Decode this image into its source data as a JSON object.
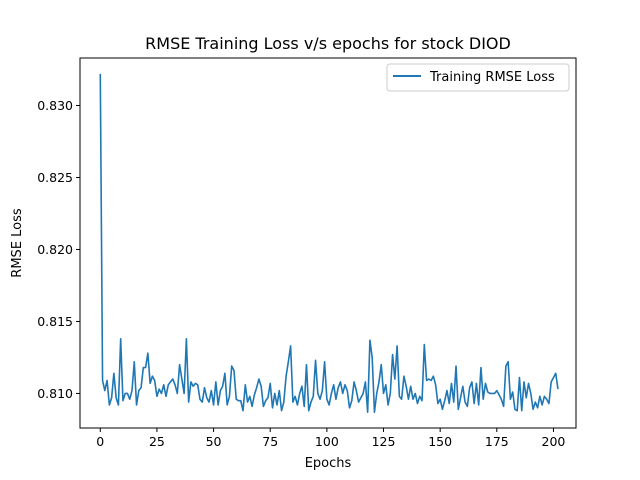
{
  "chart_data": {
    "type": "line",
    "title": "RMSE Training Loss v/s epochs for stock DIOD",
    "xlabel": "Epochs",
    "ylabel": "RMSE Loss",
    "xlim": [
      -8.95,
      209.95
    ],
    "ylim": [
      0.8076,
      0.8333
    ],
    "xticks": [
      0,
      25,
      50,
      75,
      100,
      125,
      150,
      175,
      200
    ],
    "xtick_labels": [
      "0",
      "25",
      "50",
      "75",
      "100",
      "125",
      "150",
      "175",
      "200"
    ],
    "yticks": [
      0.81,
      0.815,
      0.82,
      0.825,
      0.83
    ],
    "ytick_labels": [
      "0.810",
      "0.815",
      "0.820",
      "0.825",
      "0.830"
    ],
    "grid": false,
    "legend_position": "top-right",
    "series": [
      {
        "name": "Training RMSE Loss",
        "color": "#1f77b4",
        "x_start": 0,
        "x_step": 1,
        "values": [
          0.8322,
          0.8109,
          0.8102,
          0.8109,
          0.8092,
          0.8097,
          0.8114,
          0.8097,
          0.8092,
          0.8138,
          0.8095,
          0.81,
          0.81,
          0.8096,
          0.8102,
          0.8122,
          0.8092,
          0.8102,
          0.8104,
          0.8118,
          0.8118,
          0.8128,
          0.8107,
          0.8112,
          0.8109,
          0.8098,
          0.8103,
          0.81,
          0.8106,
          0.8098,
          0.8106,
          0.8108,
          0.811,
          0.8106,
          0.81,
          0.812,
          0.811,
          0.81,
          0.8138,
          0.8094,
          0.8108,
          0.8105,
          0.8107,
          0.8106,
          0.8096,
          0.8094,
          0.8104,
          0.8097,
          0.8094,
          0.8102,
          0.8092,
          0.8108,
          0.8092,
          0.8102,
          0.8105,
          0.8114,
          0.8092,
          0.8098,
          0.8119,
          0.8116,
          0.8096,
          0.8095,
          0.8095,
          0.8088,
          0.8106,
          0.8094,
          0.8098,
          0.8091,
          0.8099,
          0.8104,
          0.811,
          0.8105,
          0.8091,
          0.8095,
          0.8097,
          0.8107,
          0.809,
          0.81,
          0.8092,
          0.8102,
          0.8088,
          0.8094,
          0.8112,
          0.8122,
          0.8133,
          0.8094,
          0.8098,
          0.8092,
          0.81,
          0.8105,
          0.8091,
          0.812,
          0.8088,
          0.8094,
          0.8098,
          0.8123,
          0.81,
          0.8096,
          0.8102,
          0.8122,
          0.8096,
          0.8092,
          0.81,
          0.8106,
          0.8096,
          0.8104,
          0.8108,
          0.81,
          0.8106,
          0.8102,
          0.809,
          0.8095,
          0.8108,
          0.8102,
          0.8094,
          0.8097,
          0.81,
          0.8108,
          0.8087,
          0.8137,
          0.8125,
          0.8087,
          0.81,
          0.8108,
          0.812,
          0.81,
          0.8106,
          0.8092,
          0.81,
          0.8127,
          0.811,
          0.8133,
          0.8098,
          0.8096,
          0.8112,
          0.8105,
          0.8096,
          0.8105,
          0.8096,
          0.81,
          0.8093,
          0.8098,
          0.8095,
          0.8134,
          0.8109,
          0.811,
          0.8109,
          0.8112,
          0.8106,
          0.8093,
          0.8096,
          0.8089,
          0.8095,
          0.8102,
          0.8093,
          0.8107,
          0.8094,
          0.8119,
          0.8089,
          0.8097,
          0.8105,
          0.8094,
          0.8091,
          0.8104,
          0.8108,
          0.8093,
          0.8107,
          0.8092,
          0.8118,
          0.8096,
          0.8107,
          0.8101,
          0.81,
          0.81,
          0.81,
          0.8102,
          0.8099,
          0.8096,
          0.8091,
          0.8119,
          0.8122,
          0.8096,
          0.8101,
          0.8089,
          0.8088,
          0.8111,
          0.8088,
          0.8108,
          0.8097,
          0.8107,
          0.81,
          0.8089,
          0.8094,
          0.809,
          0.8098,
          0.8092,
          0.8098,
          0.8096,
          0.8093,
          0.8108,
          0.8111,
          0.8114,
          0.8103
        ]
      }
    ]
  }
}
